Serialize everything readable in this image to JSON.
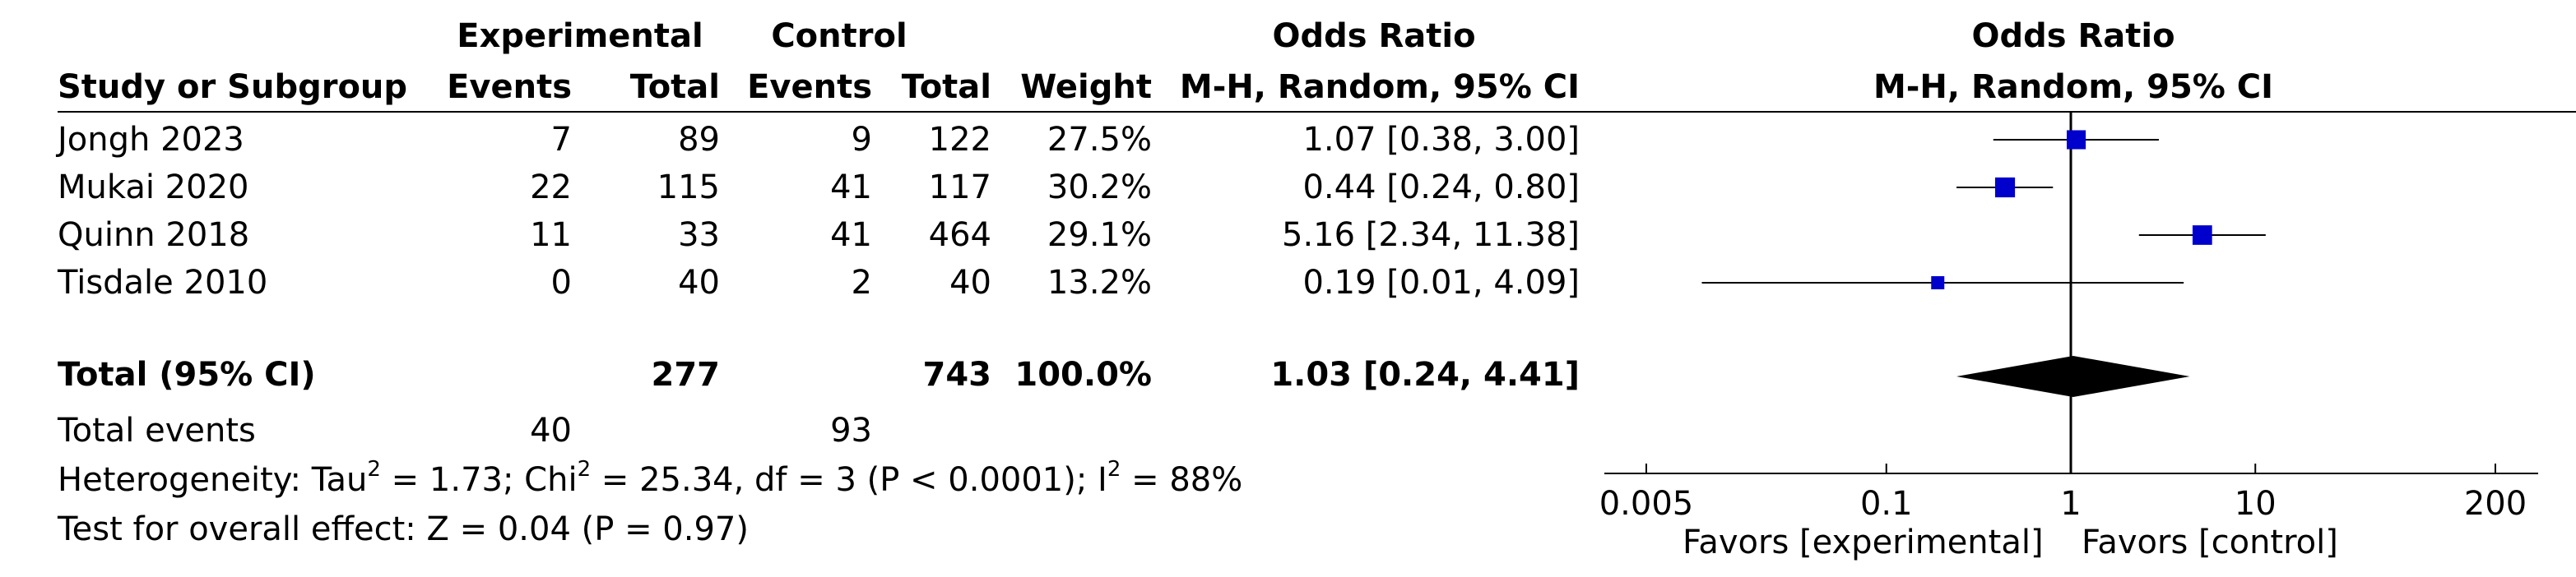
{
  "headers": {
    "group_experimental": "Experimental",
    "group_control": "Control",
    "odds_ratio": "Odds Ratio",
    "study": "Study or Subgroup",
    "events": "Events",
    "total": "Total",
    "weight": "Weight",
    "method": "M-H, Random, 95% CI",
    "plot_title": "Odds Ratio",
    "plot_method": "M-H, Random, 95% CI"
  },
  "studies": [
    {
      "name": "Jongh 2023",
      "exp_events": "7",
      "exp_total": "89",
      "ctl_events": "9",
      "ctl_total": "122",
      "weight": "27.5%",
      "ci_text": "1.07 [0.38, 3.00]"
    },
    {
      "name": "Mukai 2020",
      "exp_events": "22",
      "exp_total": "115",
      "ctl_events": "41",
      "ctl_total": "117",
      "weight": "30.2%",
      "ci_text": "0.44 [0.24, 0.80]"
    },
    {
      "name": "Quinn 2018",
      "exp_events": "11",
      "exp_total": "33",
      "ctl_events": "41",
      "ctl_total": "464",
      "weight": "29.1%",
      "ci_text": "5.16 [2.34, 11.38]"
    },
    {
      "name": "Tisdale 2010",
      "exp_events": "0",
      "exp_total": "40",
      "ctl_events": "2",
      "ctl_total": "40",
      "weight": "13.2%",
      "ci_text": "0.19 [0.01, 4.09]"
    }
  ],
  "total": {
    "label": "Total (95% CI)",
    "exp_total": "277",
    "ctl_total": "743",
    "weight": "100.0%",
    "ci_text": "1.03 [0.24, 4.41]"
  },
  "total_events": {
    "label": "Total events",
    "exp": "40",
    "ctl": "93"
  },
  "heterogeneity": {
    "prefix": "Heterogeneity: Tau",
    "tau2": "1.73",
    "chi_label": "Chi",
    "chi2": "25.34",
    "rest": "df = 3 (P < 0.0001); I",
    "i2": "88%"
  },
  "overall_effect": "Test for overall effect: Z = 0.04 (P = 0.97)",
  "favors_left": "Favors [experimental]",
  "favors_right": "Favors [control]",
  "chart_data": {
    "type": "forest",
    "scale": "log",
    "xlim": [
      0.005,
      200
    ],
    "ticks": [
      0.005,
      0.1,
      1,
      10,
      200
    ],
    "tick_labels": [
      "0.005",
      "0.1",
      "1",
      "10",
      "200"
    ],
    "null_line": 1,
    "studies": [
      {
        "name": "Jongh 2023",
        "or": 1.07,
        "lower": 0.38,
        "upper": 3.0,
        "weight": 27.5
      },
      {
        "name": "Mukai 2020",
        "or": 0.44,
        "lower": 0.24,
        "upper": 0.8,
        "weight": 30.2
      },
      {
        "name": "Quinn 2018",
        "or": 5.16,
        "lower": 2.34,
        "upper": 11.38,
        "weight": 29.1
      },
      {
        "name": "Tisdale 2010",
        "or": 0.19,
        "lower": 0.01,
        "upper": 4.09,
        "weight": 13.2
      }
    ],
    "pooled": {
      "or": 1.03,
      "lower": 0.24,
      "upper": 4.41
    },
    "colors": {
      "marker": "#0000cc",
      "diamond": "#000000"
    }
  }
}
